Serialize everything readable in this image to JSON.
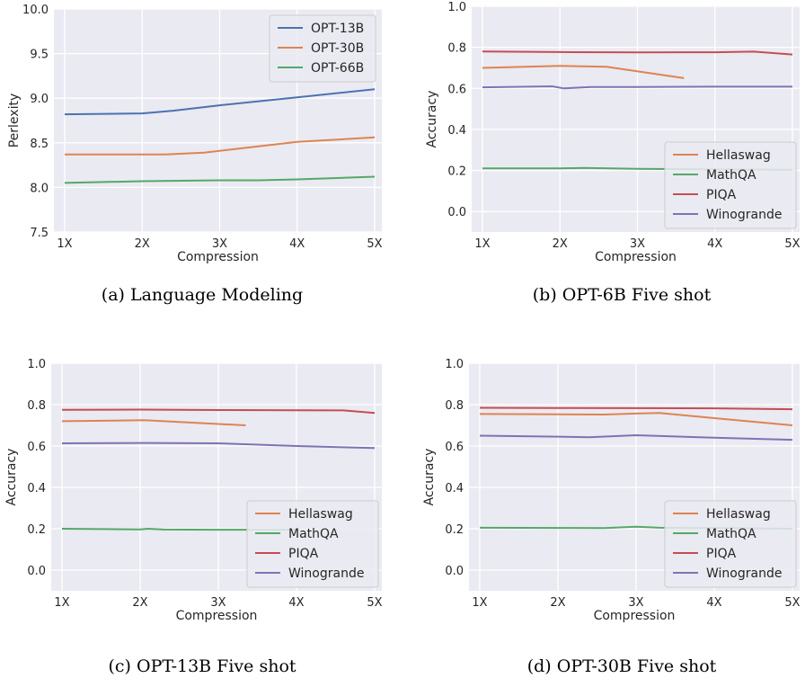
{
  "chart_data": [
    {
      "type": "line",
      "caption": "(a) Language Modeling",
      "xlabel": "Compression",
      "ylabel": "Perlexity",
      "categories": [
        "1X",
        "2X",
        "3X",
        "4X",
        "5X"
      ],
      "xlim": [
        1,
        5
      ],
      "ylim": [
        7.5,
        10.0
      ],
      "yticks": [
        "7.5",
        "8.0",
        "8.5",
        "9.0",
        "9.5",
        "10.0"
      ],
      "legend_position": "top-right",
      "grid": true,
      "series": [
        {
          "name": "OPT-13B",
          "color": "#4c72b0",
          "x": [
            1,
            2,
            2.4,
            3,
            4,
            5
          ],
          "y": [
            8.82,
            8.83,
            8.86,
            8.92,
            9.01,
            9.1
          ]
        },
        {
          "name": "OPT-30B",
          "color": "#dd8452",
          "x": [
            1,
            2,
            2.3,
            2.8,
            3.4,
            4,
            5
          ],
          "y": [
            8.37,
            8.37,
            8.37,
            8.39,
            8.45,
            8.51,
            8.56
          ]
        },
        {
          "name": "OPT-66B",
          "color": "#55a868",
          "x": [
            1,
            2,
            3,
            3.5,
            4,
            5
          ],
          "y": [
            8.05,
            8.07,
            8.08,
            8.08,
            8.09,
            8.12
          ]
        }
      ]
    },
    {
      "type": "line",
      "caption": "(b) OPT-6B Five shot",
      "xlabel": "Compression",
      "ylabel": "Accuracy",
      "categories": [
        "1X",
        "2X",
        "3X",
        "4X",
        "5X"
      ],
      "xlim": [
        1,
        5
      ],
      "ylim": [
        -0.1,
        1.0
      ],
      "yticks": [
        "0.0",
        "0.2",
        "0.4",
        "0.6",
        "0.8",
        "1.0"
      ],
      "legend_position": "bottom-right",
      "grid": true,
      "series": [
        {
          "name": "Hellaswag",
          "color": "#dd8452",
          "x": [
            1,
            2,
            2.6,
            3.6
          ],
          "y": [
            0.7,
            0.71,
            0.705,
            0.65
          ]
        },
        {
          "name": "MathQA",
          "color": "#55a868",
          "x": [
            1,
            2,
            2.3,
            3,
            4,
            5
          ],
          "y": [
            0.21,
            0.21,
            0.212,
            0.208,
            0.205,
            0.203
          ]
        },
        {
          "name": "PIQA",
          "color": "#c44e52",
          "x": [
            1,
            2,
            3,
            4,
            4.5,
            5
          ],
          "y": [
            0.78,
            0.777,
            0.775,
            0.776,
            0.779,
            0.765
          ]
        },
        {
          "name": "Winogrande",
          "color": "#8172b3",
          "x": [
            1,
            1.9,
            2.05,
            2.4,
            3,
            4,
            5
          ],
          "y": [
            0.605,
            0.61,
            0.6,
            0.607,
            0.607,
            0.608,
            0.608
          ]
        }
      ]
    },
    {
      "type": "line",
      "caption": "(c) OPT-13B Five shot",
      "xlabel": "Compression",
      "ylabel": "Accuracy",
      "categories": [
        "1X",
        "2X",
        "3X",
        "4X",
        "5X"
      ],
      "xlim": [
        1,
        5
      ],
      "ylim": [
        -0.1,
        1.0
      ],
      "yticks": [
        "0.0",
        "0.2",
        "0.4",
        "0.6",
        "0.8",
        "1.0"
      ],
      "legend_position": "bottom-right",
      "grid": true,
      "series": [
        {
          "name": "Hellaswag",
          "color": "#dd8452",
          "x": [
            1,
            2.05,
            3.35
          ],
          "y": [
            0.72,
            0.725,
            0.7
          ]
        },
        {
          "name": "MathQA",
          "color": "#55a868",
          "x": [
            1,
            2,
            2.1,
            2.3,
            3,
            4
          ],
          "y": [
            0.2,
            0.197,
            0.2,
            0.196,
            0.195,
            0.195
          ]
        },
        {
          "name": "PIQA",
          "color": "#c44e52",
          "x": [
            1,
            2,
            3,
            4,
            4.6,
            5
          ],
          "y": [
            0.775,
            0.776,
            0.774,
            0.773,
            0.772,
            0.76
          ]
        },
        {
          "name": "Winogrande",
          "color": "#8172b3",
          "x": [
            1,
            2.1,
            3,
            4,
            5
          ],
          "y": [
            0.613,
            0.615,
            0.613,
            0.6,
            0.59
          ]
        }
      ]
    },
    {
      "type": "line",
      "caption": "(d) OPT-30B Five shot",
      "xlabel": "Compression",
      "ylabel": "Accuracy",
      "categories": [
        "1X",
        "2X",
        "3X",
        "4X",
        "5X"
      ],
      "xlim": [
        1,
        5
      ],
      "ylim": [
        -0.1,
        1.0
      ],
      "yticks": [
        "0.0",
        "0.2",
        "0.4",
        "0.6",
        "0.8",
        "1.0"
      ],
      "legend_position": "bottom-right",
      "grid": true,
      "series": [
        {
          "name": "Hellaswag",
          "color": "#dd8452",
          "x": [
            1,
            2,
            2.6,
            3,
            3.3,
            4,
            5
          ],
          "y": [
            0.755,
            0.753,
            0.752,
            0.757,
            0.76,
            0.735,
            0.7
          ]
        },
        {
          "name": "MathQA",
          "color": "#55a868",
          "x": [
            1,
            2,
            2.6,
            3,
            3.3,
            4,
            5
          ],
          "y": [
            0.205,
            0.204,
            0.203,
            0.21,
            0.205,
            0.203,
            0.2
          ]
        },
        {
          "name": "PIQA",
          "color": "#c44e52",
          "x": [
            1,
            2,
            3,
            4,
            5
          ],
          "y": [
            0.785,
            0.784,
            0.783,
            0.782,
            0.778
          ]
        },
        {
          "name": "Winogrande",
          "color": "#8172b3",
          "x": [
            1,
            2,
            2.4,
            3,
            4,
            5
          ],
          "y": [
            0.65,
            0.645,
            0.642,
            0.652,
            0.64,
            0.63
          ]
        }
      ]
    }
  ]
}
